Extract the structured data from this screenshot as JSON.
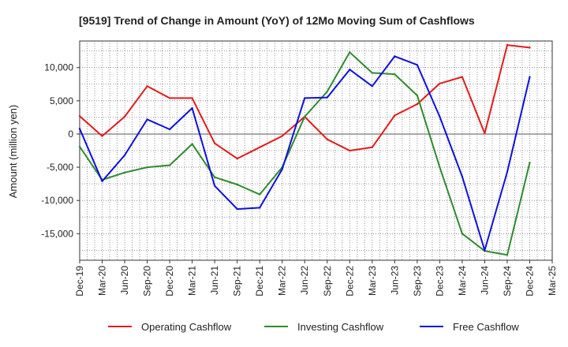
{
  "chart_data": {
    "type": "line",
    "title": "[9519]  Trend of Change in Amount (YoY) of 12Mo Moving Sum of Cashflows",
    "xlabel": "",
    "ylabel": "Amount (million yen)",
    "ylim": [
      -19000,
      14000
    ],
    "yticks": [
      10000,
      5000,
      0,
      -5000,
      -10000,
      -15000
    ],
    "ytick_labels": [
      "10,000",
      "5,000",
      "0",
      "-5,000",
      "-10,000",
      "-15,000"
    ],
    "categories": [
      "Dec-19",
      "Mar-20",
      "Jun-20",
      "Sep-20",
      "Dec-20",
      "Mar-21",
      "Jun-21",
      "Sep-21",
      "Dec-21",
      "Mar-22",
      "Jun-22",
      "Sep-22",
      "Dec-22",
      "Mar-23",
      "Jun-23",
      "Sep-23",
      "Dec-23",
      "Mar-24",
      "Jun-24",
      "Sep-24",
      "Dec-24",
      "Mar-25"
    ],
    "x_labels": [
      "Dec-19",
      "Mar-20",
      "Jun-20",
      "Sep-20",
      "Dec-20",
      "Mar-21",
      "Jun-21",
      "Sep-21",
      "Dec-21",
      "Mar-22",
      "Jun-22",
      "Sep-22",
      "Dec-22",
      "Mar-23",
      "Jun-23",
      "Sep-23",
      "Dec-23",
      "Mar-24",
      "Jun-24",
      "Sep-24",
      "Dec-24",
      "Mar-25"
    ],
    "legend_position": "bottom",
    "grid": true,
    "series": [
      {
        "name": "Operating Cashflow",
        "color": "#e31a1c",
        "values": [
          2700,
          -300,
          2600,
          7200,
          5400,
          5400,
          -1400,
          -3700,
          -2000,
          -300,
          2600,
          -800,
          -2500,
          -2000,
          2800,
          4500,
          7600,
          8600,
          100,
          13400,
          13000,
          null
        ]
      },
      {
        "name": "Investing Cashflow",
        "color": "#2e8b2e",
        "values": [
          -1900,
          -6900,
          -5800,
          -5000,
          -4700,
          -1500,
          -6500,
          -7600,
          -9100,
          -5000,
          2600,
          6400,
          12300,
          9200,
          9000,
          5800,
          -5000,
          -15000,
          -17600,
          -18200,
          -4300,
          null
        ]
      },
      {
        "name": "Free Cashflow",
        "color": "#1010dd",
        "values": [
          800,
          -7100,
          -3200,
          2200,
          700,
          3900,
          -7800,
          -11300,
          -11100,
          -5300,
          5400,
          5500,
          9700,
          7200,
          11700,
          10400,
          2600,
          -6400,
          -17500,
          -5700,
          8600,
          null
        ]
      }
    ]
  }
}
